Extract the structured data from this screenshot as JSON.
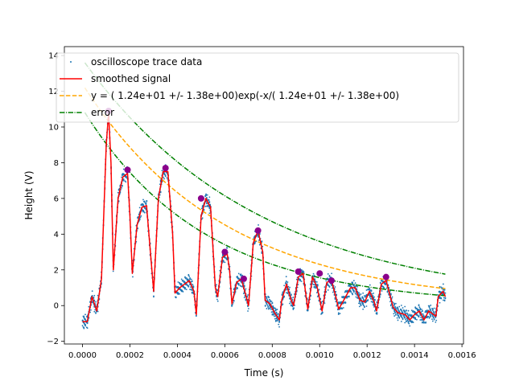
{
  "chart_data": {
    "type": "scatter",
    "xlabel": "Time (s)",
    "ylabel": "Height (V)",
    "xlim": [
      -7.65e-05,
      0.0016065
    ],
    "ylim": [
      -2.15,
      14.5
    ],
    "x_ticks": [
      0.0,
      0.0002,
      0.0004,
      0.0006,
      0.0008,
      0.001,
      0.0012,
      0.0014,
      0.0016
    ],
    "x_tick_labels": [
      "0.0000",
      "0.0002",
      "0.0004",
      "0.0006",
      "0.0008",
      "0.0010",
      "0.0012",
      "0.0014",
      "0.0016"
    ],
    "y_ticks": [
      -2,
      0,
      2,
      4,
      6,
      8,
      10,
      12,
      14
    ],
    "y_tick_labels": [
      "−2",
      "0",
      "2",
      "4",
      "6",
      "8",
      "10",
      "12",
      "14"
    ],
    "grid": false,
    "legend_position": "top",
    "colors": {
      "trace": "#1f77b4",
      "smoothed": "#ff0000",
      "fit": "#ffa500",
      "error": "#008000",
      "peaks": "#8b008b"
    },
    "legend": [
      {
        "label": "oscilloscope trace data",
        "style": "points",
        "color": "#1f77b4"
      },
      {
        "label": "smoothed signal",
        "style": "solid",
        "color": "#ff0000"
      },
      {
        "label": "y = ( 1.24e+01 +/-  1.38e+00)exp(-x/( 1.24e+01 +/-  1.38e+00)",
        "style": "dashed",
        "color": "#ffa500"
      },
      {
        "label": "error",
        "style": "dashdot",
        "color": "#008000"
      }
    ],
    "series": [
      {
        "name": "smoothed signal",
        "style": "line",
        "points": [
          [
            0.0,
            -0.9
          ],
          [
            2e-05,
            -0.9
          ],
          [
            4e-05,
            0.5
          ],
          [
            6e-05,
            -0.3
          ],
          [
            8e-05,
            1.5
          ],
          [
            0.0001,
            9.0
          ],
          [
            0.00011,
            10.8
          ],
          [
            0.00012,
            8.0
          ],
          [
            0.00013,
            2.0
          ],
          [
            0.00015,
            6.0
          ],
          [
            0.00017,
            7.2
          ],
          [
            0.00019,
            7.4
          ],
          [
            0.0002,
            5.0
          ],
          [
            0.00021,
            1.8
          ],
          [
            0.00023,
            4.5
          ],
          [
            0.00025,
            5.5
          ],
          [
            0.00027,
            5.6
          ],
          [
            0.00028,
            4.0
          ],
          [
            0.0003,
            0.8
          ],
          [
            0.00032,
            6.0
          ],
          [
            0.00034,
            7.5
          ],
          [
            0.00036,
            7.5
          ],
          [
            0.00038,
            4.0
          ],
          [
            0.00039,
            0.7
          ],
          [
            0.00041,
            1.0
          ],
          [
            0.00043,
            1.2
          ],
          [
            0.00045,
            1.4
          ],
          [
            0.00047,
            0.8
          ],
          [
            0.00048,
            -0.5
          ],
          [
            0.0005,
            5.0
          ],
          [
            0.00052,
            6.0
          ],
          [
            0.00054,
            5.5
          ],
          [
            0.00056,
            1.0
          ],
          [
            0.00057,
            0.5
          ],
          [
            0.00059,
            2.7
          ],
          [
            0.00061,
            2.9
          ],
          [
            0.00062,
            2.0
          ],
          [
            0.00063,
            0.1
          ],
          [
            0.00065,
            1.3
          ],
          [
            0.00067,
            1.5
          ],
          [
            0.00069,
            0.5
          ],
          [
            0.0007,
            0.0
          ],
          [
            0.00072,
            3.5
          ],
          [
            0.00074,
            4.2
          ],
          [
            0.00076,
            3.0
          ],
          [
            0.00077,
            0.3
          ],
          [
            0.00079,
            0.1
          ],
          [
            0.00081,
            -0.4
          ],
          [
            0.00083,
            -0.8
          ],
          [
            0.00084,
            0.3
          ],
          [
            0.00086,
            1.2
          ],
          [
            0.00088,
            0.3
          ],
          [
            0.00089,
            0.0
          ],
          [
            0.00091,
            1.6
          ],
          [
            0.00093,
            1.8
          ],
          [
            0.00095,
            -0.2
          ],
          [
            0.00097,
            1.6
          ],
          [
            0.00099,
            1.0
          ],
          [
            0.00101,
            -0.3
          ],
          [
            0.00103,
            1.3
          ],
          [
            0.00105,
            1.4
          ],
          [
            0.00107,
            0.4
          ],
          [
            0.00108,
            -0.2
          ],
          [
            0.00111,
            0.5
          ],
          [
            0.00113,
            1.0
          ],
          [
            0.00115,
            1.0
          ],
          [
            0.00117,
            0.3
          ],
          [
            0.00119,
            0.2
          ],
          [
            0.00121,
            0.8
          ],
          [
            0.00123,
            0.2
          ],
          [
            0.00124,
            -0.3
          ],
          [
            0.00126,
            1.2
          ],
          [
            0.00128,
            1.4
          ],
          [
            0.0013,
            0.4
          ],
          [
            0.00131,
            -0.1
          ],
          [
            0.00133,
            -0.4
          ],
          [
            0.00136,
            -0.5
          ],
          [
            0.00138,
            -0.8
          ],
          [
            0.0014,
            -0.5
          ],
          [
            0.00142,
            -0.3
          ],
          [
            0.00144,
            -0.8
          ],
          [
            0.00146,
            -0.3
          ],
          [
            0.00149,
            -0.6
          ],
          [
            0.0015,
            0.5
          ],
          [
            0.00152,
            0.8
          ],
          [
            0.00153,
            0.5
          ]
        ]
      },
      {
        "name": "peaks",
        "style": "markers",
        "points": [
          [
            0.00011,
            10.9
          ],
          [
            0.00019,
            7.6
          ],
          [
            0.00035,
            7.7
          ],
          [
            0.0005,
            6.0
          ],
          [
            0.0006,
            3.0
          ],
          [
            0.00068,
            1.5
          ],
          [
            0.00074,
            4.2
          ],
          [
            0.00091,
            1.9
          ],
          [
            0.001,
            1.8
          ],
          [
            0.00105,
            1.4
          ],
          [
            0.00128,
            1.6
          ]
        ]
      }
    ]
  }
}
